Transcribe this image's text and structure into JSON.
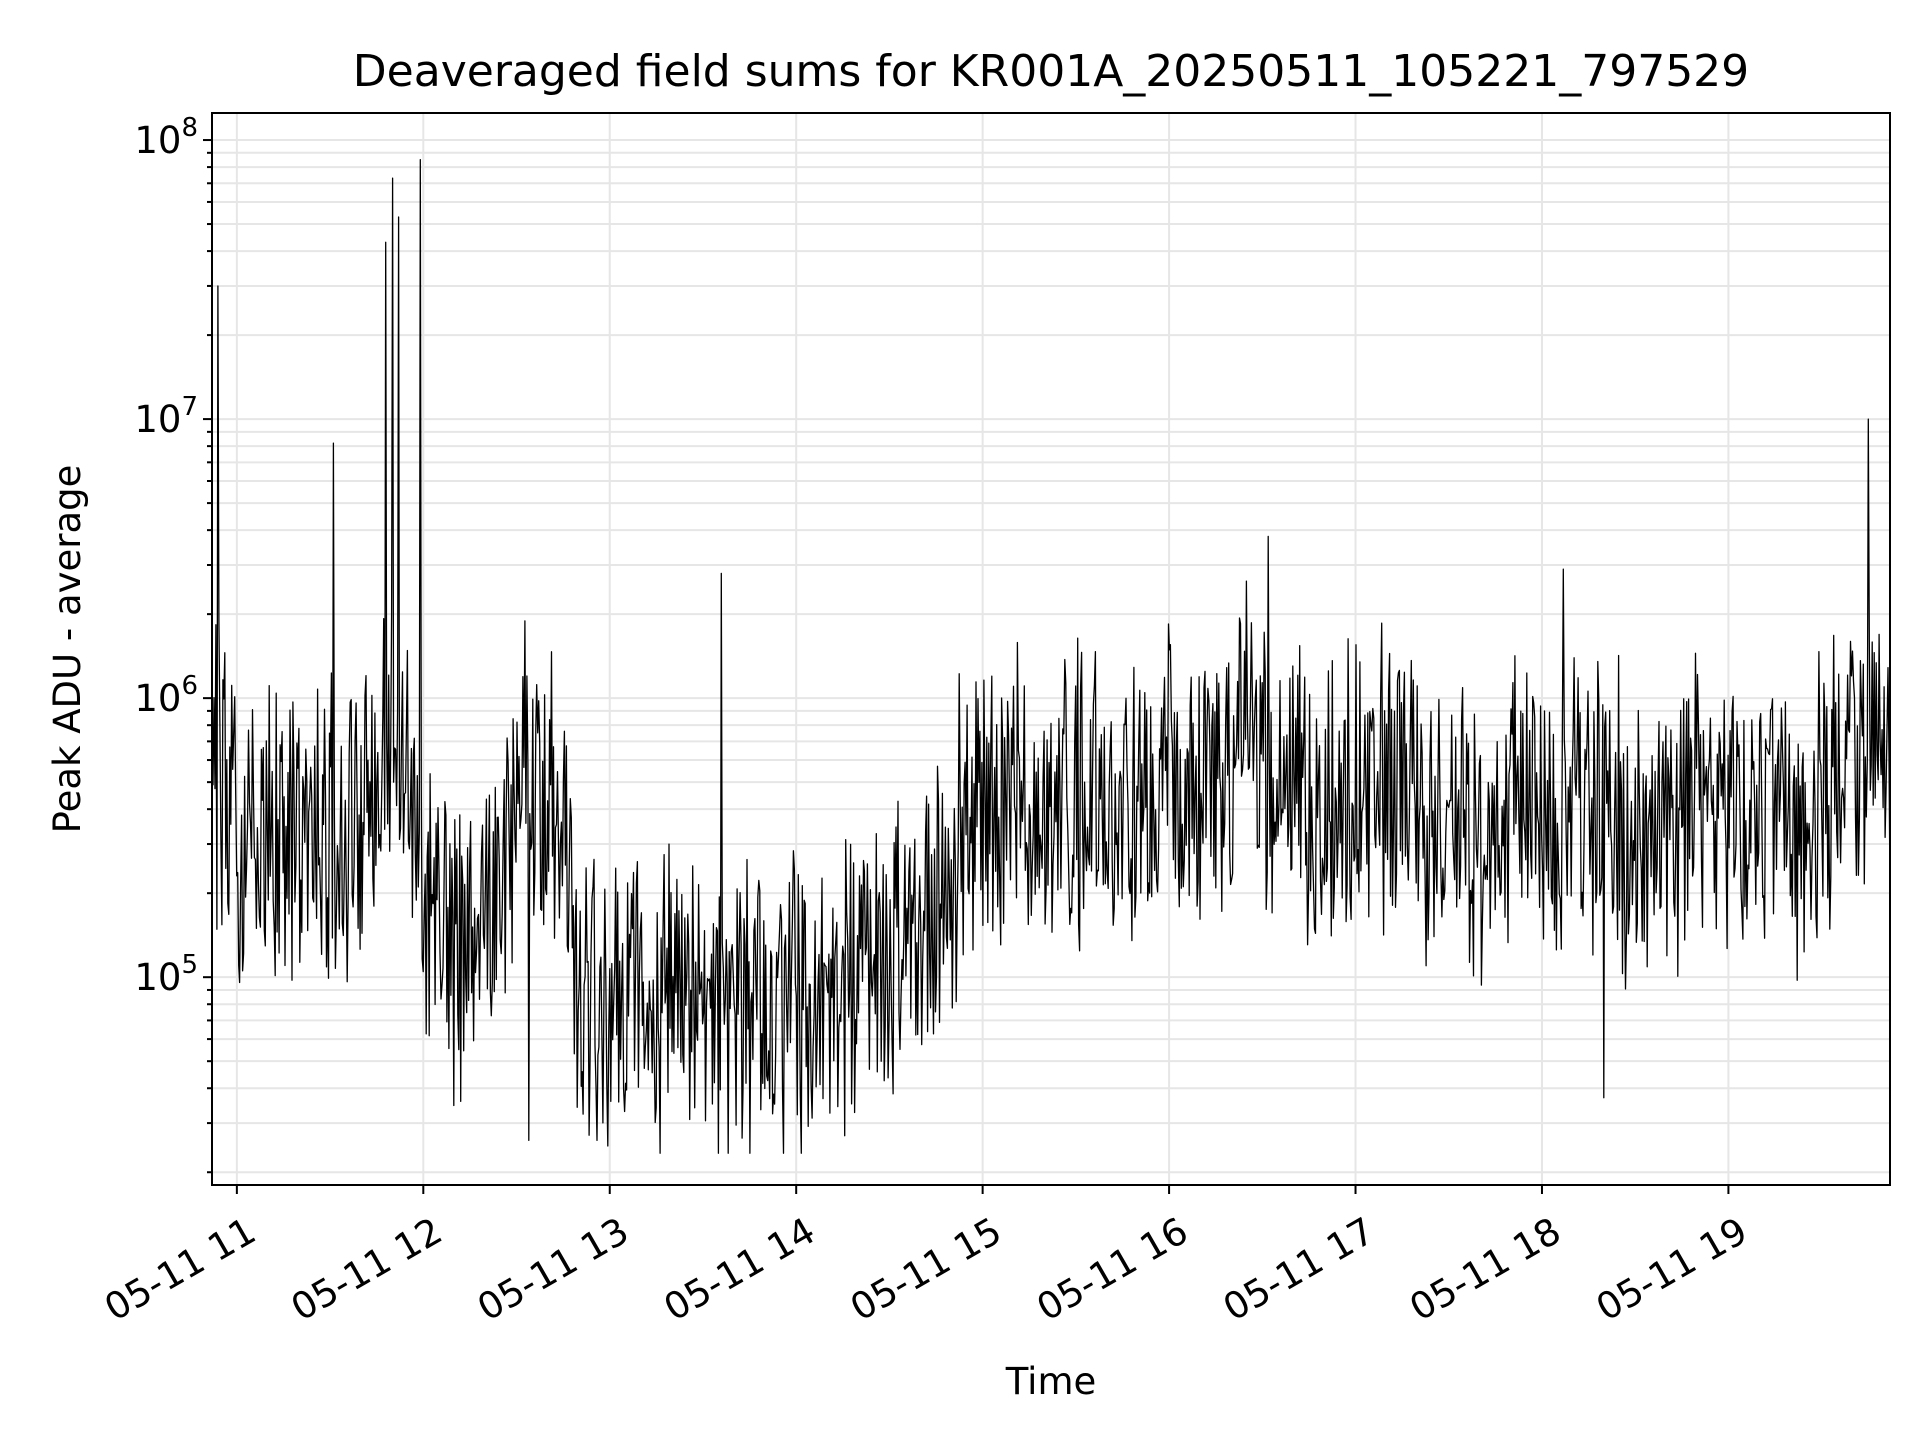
{
  "chart_data": {
    "type": "line",
    "title": "Deaveraged field sums for KR001A_20250511_105221_797529",
    "xlabel": "Time",
    "ylabel": "Peak ADU - average",
    "yscale": "log",
    "ylim": [
      18000,
      125000000
    ],
    "xlim": [
      "2025-05-11 10:52",
      "2025-05-11 19:52"
    ],
    "grid": true,
    "colors": {
      "line": "#000000",
      "grid": "#e6e6e6",
      "background": "#ffffff"
    },
    "x_ticks": [
      {
        "t": "2025-05-11 11:00",
        "label": "05-11 11"
      },
      {
        "t": "2025-05-11 12:00",
        "label": "05-11 12"
      },
      {
        "t": "2025-05-11 13:00",
        "label": "05-11 13"
      },
      {
        "t": "2025-05-11 14:00",
        "label": "05-11 14"
      },
      {
        "t": "2025-05-11 15:00",
        "label": "05-11 15"
      },
      {
        "t": "2025-05-11 16:00",
        "label": "05-11 16"
      },
      {
        "t": "2025-05-11 17:00",
        "label": "05-11 17"
      },
      {
        "t": "2025-05-11 18:00",
        "label": "05-11 18"
      },
      {
        "t": "2025-05-11 19:00",
        "label": "05-11 19"
      }
    ],
    "y_ticks": [
      {
        "value": 100000,
        "base": "10",
        "exp": "5"
      },
      {
        "value": 1000000,
        "base": "10",
        "exp": "6"
      },
      {
        "value": 10000000,
        "base": "10",
        "exp": "7"
      },
      {
        "value": 100000000,
        "base": "10",
        "exp": "8"
      }
    ],
    "series": [
      {
        "x": [
          "2025-05-11 10:52",
          "2025-05-11 11:02",
          "2025-05-11 11:12",
          "2025-05-11 11:22",
          "2025-05-11 11:32",
          "2025-05-11 11:42",
          "2025-05-11 11:52",
          "2025-05-11 12:02",
          "2025-05-11 12:12",
          "2025-05-11 12:22",
          "2025-05-11 12:32",
          "2025-05-11 12:42",
          "2025-05-11 12:52",
          "2025-05-11 13:02",
          "2025-05-11 13:12",
          "2025-05-11 13:22",
          "2025-05-11 13:32",
          "2025-05-11 13:42",
          "2025-05-11 13:52",
          "2025-05-11 14:02",
          "2025-05-11 14:12",
          "2025-05-11 14:22",
          "2025-05-11 14:32",
          "2025-05-11 14:42",
          "2025-05-11 14:52",
          "2025-05-11 15:02",
          "2025-05-11 15:12",
          "2025-05-11 15:22",
          "2025-05-11 15:32",
          "2025-05-11 15:42",
          "2025-05-11 15:52",
          "2025-05-11 16:02",
          "2025-05-11 16:12",
          "2025-05-11 16:22",
          "2025-05-11 16:32",
          "2025-05-11 16:42",
          "2025-05-11 16:52",
          "2025-05-11 17:02",
          "2025-05-11 17:12",
          "2025-05-11 17:22",
          "2025-05-11 17:32",
          "2025-05-11 17:42",
          "2025-05-11 17:52",
          "2025-05-11 18:02",
          "2025-05-11 18:12",
          "2025-05-11 18:22",
          "2025-05-11 18:32",
          "2025-05-11 18:42",
          "2025-05-11 18:52",
          "2025-05-11 19:02",
          "2025-05-11 19:12",
          "2025-05-11 19:22",
          "2025-05-11 19:32",
          "2025-05-11 19:42",
          "2025-05-11 19:52"
        ],
        "y": [
          600000,
          300000,
          350000,
          400000,
          300000,
          450000,
          900000,
          150000,
          130000,
          200000,
          500000,
          400000,
          80000,
          70000,
          80000,
          90000,
          75000,
          80000,
          85000,
          90000,
          80000,
          100000,
          110000,
          150000,
          300000,
          500000,
          450000,
          350000,
          450000,
          400000,
          500000,
          450000,
          500000,
          700000,
          600000,
          500000,
          400000,
          450000,
          500000,
          400000,
          350000,
          300000,
          400000,
          350000,
          450000,
          400000,
          300000,
          350000,
          400000,
          350000,
          400000,
          300000,
          500000,
          600000,
          650000
        ],
        "spikes": [
          {
            "t": "2025-05-11 10:54",
            "value": 30000000
          },
          {
            "t": "2025-05-11 11:31",
            "value": 8200000
          },
          {
            "t": "2025-05-11 11:48",
            "value": 43000000
          },
          {
            "t": "2025-05-11 11:50",
            "value": 73000000
          },
          {
            "t": "2025-05-11 11:52",
            "value": 53000000
          },
          {
            "t": "2025-05-11 11:59",
            "value": 85000000
          },
          {
            "t": "2025-05-11 13:36",
            "value": 2800000
          },
          {
            "t": "2025-05-11 16:32",
            "value": 3800000
          },
          {
            "t": "2025-05-11 18:07",
            "value": 2900000
          },
          {
            "t": "2025-05-11 19:45",
            "value": 10000000
          }
        ],
        "dips": [
          {
            "t": "2025-05-11 12:34",
            "value": 26000.0
          },
          {
            "t": "2025-05-11 12:56",
            "value": 26000
          },
          {
            "t": "2025-05-11 18:20",
            "value": 37000
          }
        ]
      }
    ]
  }
}
